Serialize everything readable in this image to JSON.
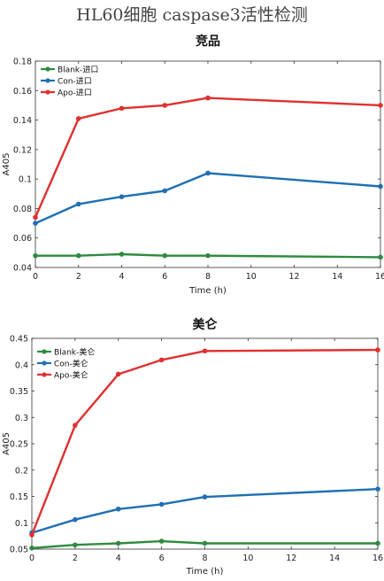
{
  "page_title": "HL60细胞 caspase3活性检测",
  "chart_data": [
    {
      "type": "line",
      "title": "竞品",
      "xlabel": "Time (h)",
      "ylabel": "A405",
      "xlim": [
        0,
        16
      ],
      "ylim": [
        0.04,
        0.18
      ],
      "xticks": [
        0,
        2,
        4,
        6,
        8,
        10,
        12,
        14,
        16
      ],
      "yticks": [
        0.04,
        0.06,
        0.08,
        0.1,
        0.12,
        0.14,
        0.16,
        0.18
      ],
      "ytick_labels": [
        "0.04",
        "0.06",
        "0.08",
        "0.1",
        "0.12",
        "0.14",
        "0.16",
        "0.18"
      ],
      "legend_position": "top-left",
      "grid": false,
      "series": [
        {
          "name": "Blank-进口",
          "color": "#2e8b3e",
          "x": [
            0,
            2,
            4,
            6,
            8,
            16
          ],
          "values": [
            0.048,
            0.048,
            0.049,
            0.048,
            0.048,
            0.047
          ]
        },
        {
          "name": "Con-进口",
          "color": "#1f6fb4",
          "x": [
            0,
            2,
            4,
            6,
            8,
            16
          ],
          "values": [
            0.07,
            0.083,
            0.088,
            0.092,
            0.104,
            0.095
          ]
        },
        {
          "name": "Apo-进口",
          "color": "#e03030",
          "x": [
            0,
            2,
            4,
            6,
            8,
            16
          ],
          "values": [
            0.074,
            0.141,
            0.148,
            0.15,
            0.155,
            0.15
          ]
        }
      ]
    },
    {
      "type": "line",
      "title": "美仑",
      "xlabel": "Time (h)",
      "ylabel": "A405",
      "xlim": [
        0,
        16
      ],
      "ylim": [
        0.05,
        0.45
      ],
      "xticks": [
        0,
        2,
        4,
        6,
        8,
        10,
        12,
        14,
        16
      ],
      "yticks": [
        0.05,
        0.1,
        0.15,
        0.2,
        0.25,
        0.3,
        0.35,
        0.4,
        0.45
      ],
      "ytick_labels": [
        "0.05",
        "0.1",
        "0.15",
        "0.2",
        "0.25",
        "0.3",
        "0.35",
        "0.4",
        "0.45"
      ],
      "legend_position": "top-left",
      "grid": false,
      "series": [
        {
          "name": "Blank-美仑",
          "color": "#2e8b3e",
          "x": [
            0,
            2,
            4,
            6,
            8,
            16
          ],
          "values": [
            0.052,
            0.058,
            0.061,
            0.065,
            0.061,
            0.061
          ]
        },
        {
          "name": "Con-美仑",
          "color": "#1f6fb4",
          "x": [
            0,
            2,
            4,
            6,
            8,
            16
          ],
          "values": [
            0.081,
            0.106,
            0.126,
            0.135,
            0.149,
            0.164
          ]
        },
        {
          "name": "Apo-美仑",
          "color": "#e03030",
          "x": [
            0,
            2,
            4,
            6,
            8,
            16
          ],
          "values": [
            0.077,
            0.285,
            0.382,
            0.409,
            0.426,
            0.428
          ]
        }
      ]
    }
  ]
}
